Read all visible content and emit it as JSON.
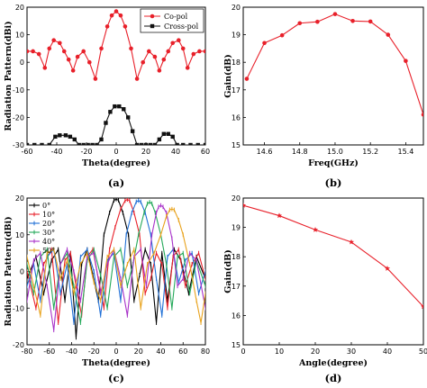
{
  "chart_data": [
    {
      "type": "line",
      "panel_label": "(a)",
      "xlabel": "Theta(degree)",
      "ylabel": "Radiation Pattern(dBi)",
      "xlim": [
        -60,
        60
      ],
      "ylim": [
        -30,
        20
      ],
      "xticks": [
        -60,
        -40,
        -20,
        0,
        20,
        40,
        60
      ],
      "yticks": [
        -30,
        -20,
        -10,
        0,
        10,
        20
      ],
      "legend_position": "top-right",
      "series": [
        {
          "name": "Co-pol",
          "color": "#e8202a",
          "marker": "circle",
          "x": [
            -60,
            -56,
            -52,
            -48,
            -45,
            -42,
            -38,
            -35,
            -32,
            -29,
            -26,
            -22,
            -18,
            -14,
            -10,
            -6,
            -3,
            0,
            3,
            6,
            10,
            14,
            18,
            22,
            26,
            29,
            32,
            35,
            38,
            42,
            45,
            48,
            52,
            56,
            60
          ],
          "y": [
            4,
            4,
            3,
            -2,
            5,
            8,
            7,
            4,
            1,
            -3,
            2,
            4,
            0,
            -6,
            5,
            13,
            17,
            18.5,
            17,
            13,
            5,
            -6,
            0,
            4,
            2,
            -3,
            1,
            4,
            7,
            8,
            5,
            -2,
            3,
            4,
            4
          ]
        },
        {
          "name": "Cross-pol",
          "color": "#111111",
          "marker": "square",
          "x": [
            -60,
            -55,
            -50,
            -45,
            -41,
            -38,
            -34,
            -31,
            -28,
            -25,
            -22,
            -19,
            -16,
            -13,
            -10,
            -7,
            -4,
            -1,
            2,
            5,
            8,
            11,
            14,
            17,
            20,
            23,
            26,
            29,
            32,
            35,
            38,
            41,
            45,
            50,
            55,
            60
          ],
          "y": [
            -30,
            -30,
            -30,
            -30,
            -27,
            -26.5,
            -26.5,
            -27,
            -28,
            -30,
            -30,
            -30,
            -30,
            -30,
            -28,
            -22,
            -18,
            -16,
            -16,
            -17,
            -20,
            -25,
            -30,
            -30,
            -30,
            -30,
            -30,
            -28,
            -26,
            -26,
            -27,
            -30,
            -30,
            -30,
            -30,
            -30
          ]
        }
      ]
    },
    {
      "type": "line",
      "panel_label": "(b)",
      "xlabel": "Freq(GHz)",
      "ylabel": "Gain(dB)",
      "xlim": [
        14.48,
        15.5
      ],
      "ylim": [
        15,
        20
      ],
      "xticks": [
        14.6,
        14.8,
        15.0,
        15.2,
        15.4
      ],
      "yticks": [
        15,
        16,
        17,
        18,
        19,
        20
      ],
      "series": [
        {
          "name": "",
          "color": "#e8202a",
          "marker": "circle",
          "x": [
            14.5,
            14.6,
            14.7,
            14.8,
            14.9,
            15.0,
            15.1,
            15.2,
            15.3,
            15.4,
            15.5
          ],
          "y": [
            17.4,
            18.7,
            18.98,
            19.42,
            19.47,
            19.75,
            19.5,
            19.48,
            19.0,
            18.05,
            16.1
          ]
        }
      ]
    },
    {
      "type": "line",
      "panel_label": "(c)",
      "xlabel": "Theta(degree)",
      "ylabel": "Radiation Pattern(dBi)",
      "xlim": [
        -80,
        80
      ],
      "ylim": [
        -20,
        20
      ],
      "xticks": [
        -80,
        -60,
        -40,
        -20,
        0,
        20,
        40,
        60,
        80
      ],
      "yticks": [
        -20,
        -10,
        0,
        10,
        20
      ],
      "legend_position": "top-left",
      "series": [
        {
          "name": "0°",
          "color": "#000000",
          "peak": 0,
          "peak_gain": 19.7,
          "x": [
            -80,
            -72,
            -65,
            -58,
            -52,
            -46,
            -41,
            -36,
            -31,
            -26,
            -21,
            -16,
            -11,
            -6,
            -2,
            0,
            2,
            6,
            11,
            16,
            21,
            26,
            31,
            36,
            41,
            46,
            52,
            58,
            65,
            72,
            80
          ],
          "y": [
            -2,
            4,
            -6,
            3,
            6,
            -8,
            5,
            -18,
            2,
            6,
            -1,
            -8,
            10,
            16,
            19.4,
            19.7,
            19.4,
            16,
            10,
            -8,
            -1,
            6,
            2,
            -14,
            5,
            -8,
            6,
            3,
            -6,
            4,
            -2
          ]
        },
        {
          "name": "10°",
          "color": "#e8202a",
          "peak": 10,
          "peak_gain": 19.6,
          "x": [
            -80,
            -72,
            -65,
            -58,
            -52,
            -46,
            -41,
            -36,
            -31,
            -26,
            -21,
            -16,
            -11,
            -6,
            -1,
            4,
            8,
            10,
            12,
            16,
            21,
            26,
            31,
            36,
            41,
            46,
            51,
            56,
            62,
            68,
            74,
            80
          ],
          "y": [
            0,
            -10,
            2,
            6,
            -14,
            3,
            5,
            -4,
            -12,
            4,
            6,
            -2,
            -10,
            6,
            12,
            17,
            19.3,
            19.6,
            19.3,
            16,
            10,
            -6,
            -2,
            5,
            2,
            -10,
            4,
            6,
            -4,
            2,
            5,
            -2
          ]
        },
        {
          "name": "20°",
          "color": "#1f6fd6",
          "peak": 20,
          "peak_gain": 19.3,
          "x": [
            -80,
            -74,
            -68,
            -62,
            -56,
            -50,
            -44,
            -38,
            -32,
            -26,
            -20,
            -14,
            -8,
            -2,
            4,
            9,
            14,
            18,
            20,
            22,
            26,
            31,
            36,
            41,
            46,
            51,
            56,
            62,
            68,
            74,
            80
          ],
          "y": [
            -4,
            2,
            -8,
            4,
            6,
            -6,
            2,
            -14,
            4,
            6,
            0,
            -12,
            3,
            5,
            -8,
            10,
            16,
            19,
            19.3,
            19,
            16,
            10,
            -2,
            -12,
            4,
            6,
            -3,
            3,
            5,
            -6,
            0
          ]
        },
        {
          "name": "30°",
          "color": "#25a95a",
          "peak": 30,
          "peak_gain": 18.9,
          "x": [
            -80,
            -74,
            -68,
            -62,
            -56,
            -50,
            -44,
            -38,
            -32,
            -26,
            -20,
            -14,
            -8,
            -2,
            4,
            10,
            15,
            20,
            25,
            28,
            30,
            32,
            35,
            40,
            45,
            50,
            55,
            60,
            66,
            72,
            80
          ],
          "y": [
            2,
            -6,
            4,
            6,
            -10,
            2,
            5,
            -4,
            -14,
            3,
            6,
            -1,
            -10,
            4,
            6,
            -4,
            2,
            10,
            16,
            18.5,
            18.9,
            18.5,
            16,
            10,
            2,
            -10,
            4,
            5,
            -6,
            3,
            -4
          ]
        },
        {
          "name": "40°",
          "color": "#a832c9",
          "peak": 40,
          "peak_gain": 18.0,
          "x": [
            -80,
            -74,
            -68,
            -62,
            -56,
            -50,
            -44,
            -38,
            -32,
            -26,
            -20,
            -14,
            -8,
            -2,
            4,
            10,
            16,
            22,
            27,
            32,
            36,
            38,
            40,
            42,
            45,
            50,
            55,
            60,
            66,
            72,
            80
          ],
          "y": [
            -8,
            3,
            5,
            -4,
            -16,
            2,
            6,
            0,
            -8,
            4,
            5,
            -6,
            2,
            6,
            -2,
            -12,
            4,
            6,
            -4,
            10,
            16,
            17.6,
            18,
            17.6,
            16,
            9,
            -4,
            -2,
            5,
            3,
            -10
          ]
        },
        {
          "name": "50°",
          "color": "#e8a21b",
          "peak": 50,
          "peak_gain": 17.0,
          "x": [
            -80,
            -74,
            -68,
            -62,
            -56,
            -50,
            -44,
            -38,
            -32,
            -26,
            -20,
            -14,
            -8,
            -2,
            4,
            10,
            16,
            22,
            28,
            34,
            40,
            45,
            48,
            50,
            52,
            56,
            60,
            66,
            72,
            76,
            80
          ],
          "y": [
            4,
            -4,
            -12,
            5,
            6,
            -2,
            3,
            -6,
            2,
            5,
            -3,
            -8,
            4,
            6,
            -4,
            2,
            6,
            -10,
            2,
            5,
            10,
            15,
            16.8,
            17,
            16.8,
            14,
            10,
            2,
            -8,
            -14,
            -6
          ]
        }
      ]
    },
    {
      "type": "line",
      "panel_label": "(d)",
      "xlabel": "Angle(degree)",
      "ylabel": "Gain(dB)",
      "xlim": [
        0,
        50
      ],
      "ylim": [
        15,
        20
      ],
      "xticks": [
        0,
        10,
        20,
        30,
        40,
        50
      ],
      "yticks": [
        15,
        16,
        17,
        18,
        19,
        20
      ],
      "series": [
        {
          "name": "",
          "color": "#e8202a",
          "marker": "star",
          "x": [
            0,
            10,
            20,
            30,
            40,
            50
          ],
          "y": [
            19.75,
            19.4,
            18.92,
            18.5,
            17.6,
            16.3
          ]
        }
      ]
    }
  ]
}
